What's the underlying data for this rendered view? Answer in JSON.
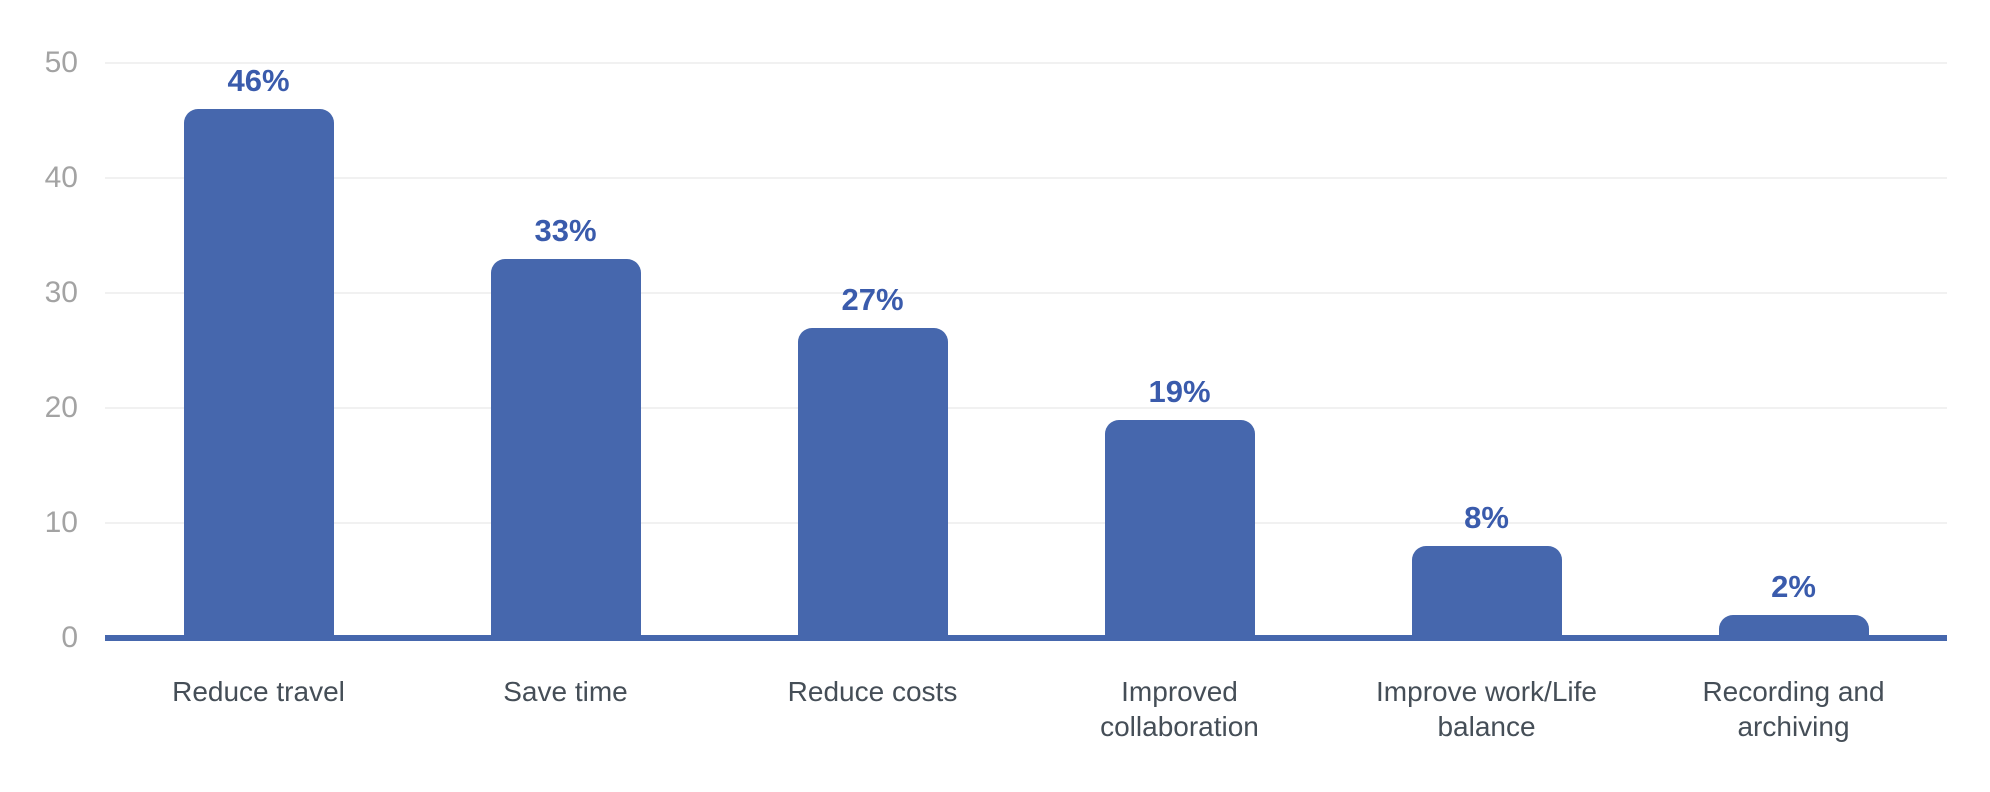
{
  "chart_data": {
    "type": "bar",
    "title": "",
    "xlabel": "",
    "ylabel": "",
    "categories": [
      "Reduce travel",
      "Save time",
      "Reduce costs",
      "Improved collaboration",
      "Improve work/Life balance",
      "Recording and archiving"
    ],
    "category_lines": [
      [
        "Reduce travel"
      ],
      [
        "Save time"
      ],
      [
        "Reduce costs"
      ],
      [
        "Improved",
        "collaboration"
      ],
      [
        "Improve work/Life",
        "balance"
      ],
      [
        "Recording and",
        "archiving"
      ]
    ],
    "values": [
      46,
      33,
      27,
      19,
      8,
      2
    ],
    "data_labels": [
      "46%",
      "33%",
      "27%",
      "19%",
      "8%",
      "2%"
    ],
    "unit": "%",
    "ylim": [
      0,
      50
    ],
    "yticks": [
      0,
      10,
      20,
      30,
      40,
      50
    ],
    "ytick_labels": [
      "0",
      "10",
      "20",
      "30",
      "40",
      "50"
    ],
    "grid": true,
    "legend": "none",
    "colors": {
      "bar": "#4667AD",
      "value_label": "#3A5BAC",
      "axis_line": "#4667AD",
      "gridline": "#F1F1F1",
      "tick_label": "#A3A3A3",
      "category_label": "#454E57",
      "background": "#FFFFFF"
    }
  }
}
